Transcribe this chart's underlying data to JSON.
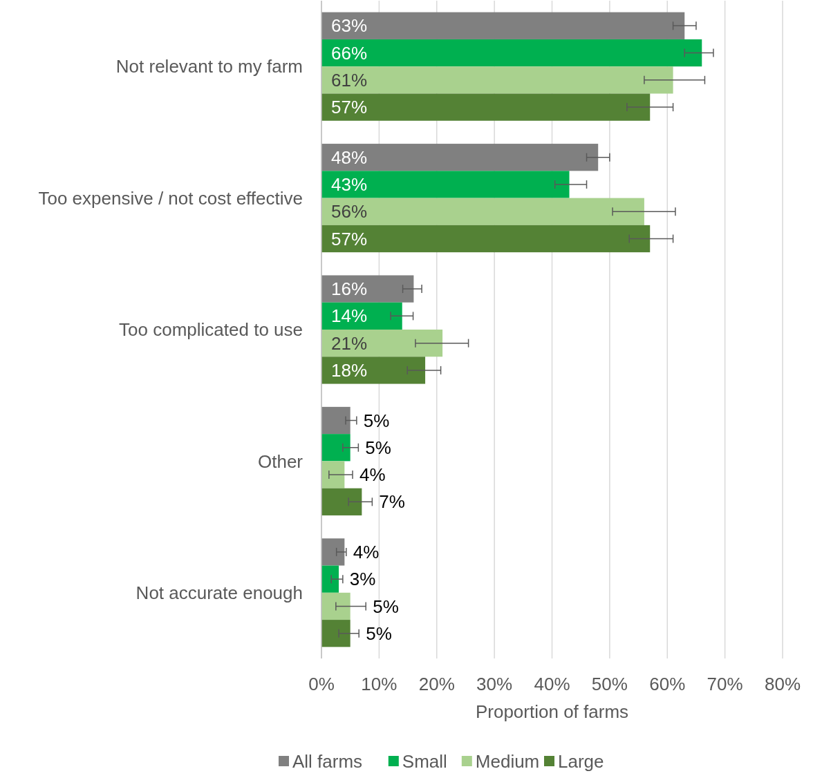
{
  "chart_data": {
    "type": "bar",
    "orientation": "horizontal",
    "xlabel": "Proportion of farms",
    "categories": [
      "Not relevant to my farm",
      "Too expensive / not cost effective",
      "Too complicated to use",
      "Other",
      "Not accurate enough"
    ],
    "series": [
      {
        "name": "All farms",
        "color": "#808080",
        "values": [
          63,
          48,
          16,
          5,
          4
        ],
        "value_labels": [
          "63%",
          "48%",
          "16%",
          "5%",
          "4%"
        ],
        "errors": [
          [
            61,
            65
          ],
          [
            46,
            50
          ],
          [
            14.1,
            17.4
          ],
          [
            4.2,
            6.1
          ],
          [
            2.6,
            4.3
          ]
        ]
      },
      {
        "name": "Small",
        "color": "#00b050",
        "values": [
          66,
          43,
          14,
          5,
          3
        ],
        "value_labels": [
          "66%",
          "43%",
          "14%",
          "5%",
          "3%"
        ],
        "errors": [
          [
            63,
            68
          ],
          [
            40.5,
            46
          ],
          [
            12,
            15.9
          ],
          [
            3.7,
            6.4
          ],
          [
            1.7,
            3.7
          ]
        ]
      },
      {
        "name": "Medium",
        "color": "#a9d18e",
        "values": [
          61,
          56,
          21,
          4,
          5
        ],
        "value_labels": [
          "61%",
          "56%",
          "21%",
          "4%",
          "5%"
        ],
        "errors": [
          [
            56,
            66.5
          ],
          [
            50.5,
            61.4
          ],
          [
            16.3,
            25.5
          ],
          [
            1.3,
            5.4
          ],
          [
            2.5,
            7.7
          ]
        ]
      },
      {
        "name": "Large",
        "color": "#548235",
        "values": [
          57,
          57,
          18,
          7,
          5
        ],
        "value_labels": [
          "57%",
          "57%",
          "18%",
          "7%",
          "5%"
        ],
        "errors": [
          [
            53,
            61
          ],
          [
            53.4,
            61
          ],
          [
            14.9,
            20.7
          ],
          [
            4.7,
            8.8
          ],
          [
            3,
            6.5
          ]
        ]
      }
    ],
    "xlim": [
      0,
      80
    ],
    "xticks": [
      {
        "value": 0,
        "label": "0%"
      },
      {
        "value": 10,
        "label": "10%"
      },
      {
        "value": 20,
        "label": "20%"
      },
      {
        "value": 30,
        "label": "30%"
      },
      {
        "value": 40,
        "label": "40%"
      },
      {
        "value": 50,
        "label": "50%"
      },
      {
        "value": 60,
        "label": "60%"
      },
      {
        "value": 70,
        "label": "70%"
      },
      {
        "value": 80,
        "label": "80%"
      }
    ],
    "grid": "x",
    "legend": "bottom"
  }
}
